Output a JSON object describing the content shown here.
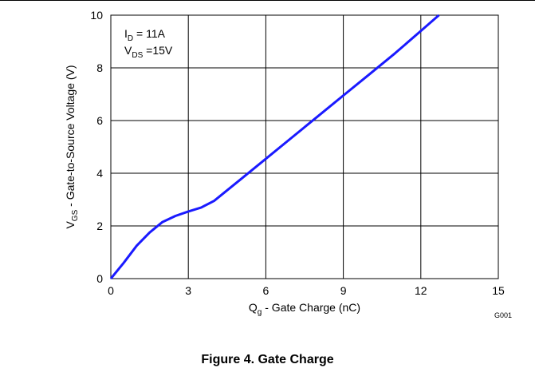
{
  "chart_data": {
    "type": "line",
    "xlabel_main": "Q",
    "xlabel_sub": "g",
    "xlabel_rest": " - Gate Charge  (nC)",
    "ylabel_main": "V",
    "ylabel_sub": "GS",
    "ylabel_rest": " - Gate-to-Source Voltage (V)",
    "xlim": [
      0,
      15
    ],
    "ylim": [
      0,
      10
    ],
    "xticks": [
      0,
      3,
      6,
      9,
      12,
      15
    ],
    "yticks": [
      0,
      2,
      4,
      6,
      8,
      10
    ],
    "grid": true,
    "annotations": {
      "id_main": "I",
      "id_sub": "D",
      "id_rest": " = 11A",
      "vds_main": "V",
      "vds_sub": "DS",
      "vds_rest": " =15V"
    },
    "series": [
      {
        "color": "#1a1aff",
        "x": [
          0,
          0.5,
          1.0,
          1.5,
          2.0,
          2.5,
          3.0,
          3.5,
          4.0,
          5.0,
          6.0,
          7.0,
          8.0,
          9.0,
          10.0,
          11.0,
          12.0,
          12.7
        ],
        "y": [
          0,
          0.6,
          1.25,
          1.75,
          2.15,
          2.38,
          2.55,
          2.7,
          2.95,
          3.75,
          4.55,
          5.35,
          6.15,
          6.95,
          7.75,
          8.55,
          9.4,
          10.0
        ]
      }
    ]
  },
  "figure_code": "G001",
  "caption": "Figure 4. Gate Charge"
}
